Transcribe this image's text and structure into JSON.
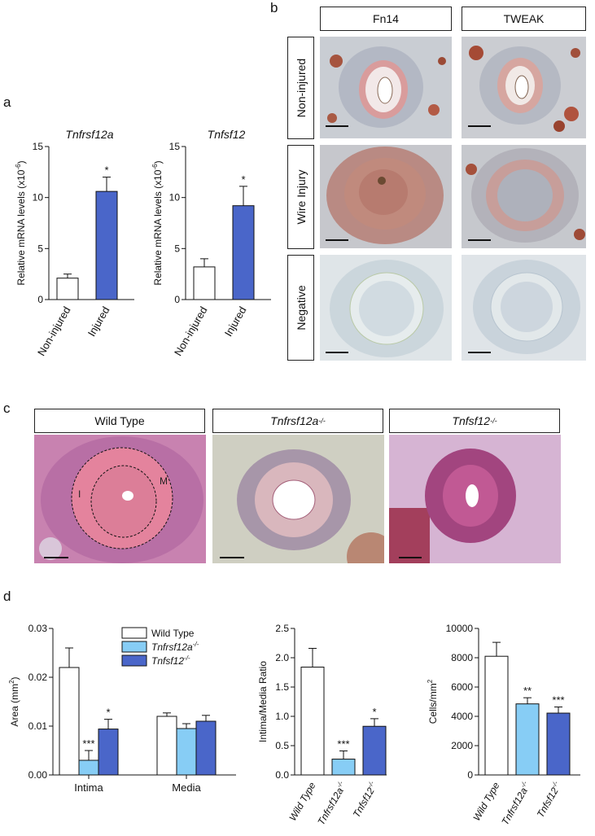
{
  "panels": {
    "a": "a",
    "b": "b",
    "c": "c",
    "d": "d"
  },
  "panel_b": {
    "columns": [
      "Fn14",
      "TWEAK"
    ],
    "rows": [
      "Non-injured",
      "Wire Injury",
      "Negative"
    ]
  },
  "panel_c": {
    "col1": "Wild Type",
    "col2_base": "Tnfrsf12a",
    "col2_sup": "-/-",
    "col3_base": "Tnfsf12",
    "col3_sup": "-/-",
    "marker_intima": "I",
    "marker_media": "M"
  },
  "colors": {
    "white_bar": "#ffffff",
    "light_blue": "#87cdf5",
    "dark_blue": "#4a66c9",
    "outline": "#222222"
  },
  "chart_data": [
    {
      "type": "bar",
      "panel": "a",
      "title": "Tnfrsf12a",
      "categories": [
        "Non-injured",
        "Injured"
      ],
      "values": [
        2.1,
        10.6
      ],
      "errors": [
        0.4,
        1.4
      ],
      "significance": [
        "",
        "*"
      ],
      "ylabel_base": "Relative mRNA levels (x10",
      "ylabel_sup": "-6",
      "ylabel_tail": ")",
      "ylim": [
        0,
        15
      ],
      "yticks": [
        "0",
        "5",
        "10",
        "15"
      ]
    },
    {
      "type": "bar",
      "panel": "a",
      "title": "Tnfsf12",
      "categories": [
        "Non-injured",
        "Injured"
      ],
      "values": [
        3.2,
        9.2
      ],
      "errors": [
        0.8,
        1.9
      ],
      "significance": [
        "",
        "*"
      ],
      "ylabel_base": "Relative mRNA levels (x10",
      "ylabel_sup": "-6",
      "ylabel_tail": ")",
      "ylim": [
        0,
        15
      ],
      "yticks": [
        "0",
        "5",
        "10",
        "15"
      ]
    },
    {
      "type": "bar",
      "panel": "d",
      "categories": [
        "Intima",
        "Media"
      ],
      "series": [
        {
          "name": "Wild Type",
          "sup": "",
          "values": [
            0.022,
            0.012
          ],
          "errors": [
            0.004,
            0.0007
          ],
          "significance": [
            "",
            ""
          ]
        },
        {
          "name": "Tnfrsf12a",
          "sup": "-/-",
          "values": [
            0.003,
            0.0095
          ],
          "errors": [
            0.002,
            0.001
          ],
          "significance": [
            "***",
            ""
          ]
        },
        {
          "name": "Tnfsf12",
          "sup": "-/-",
          "values": [
            0.0094,
            0.011
          ],
          "errors": [
            0.002,
            0.0012
          ],
          "significance": [
            "*",
            ""
          ]
        }
      ],
      "ylabel_base": "Area (mm",
      "ylabel_sup": "2",
      "ylabel_tail": ")",
      "ylim": [
        0,
        0.03
      ],
      "yticks": [
        "0.00",
        "0.01",
        "0.02",
        "0.03"
      ]
    },
    {
      "type": "bar",
      "panel": "d",
      "categories": [
        "Wild Type",
        "Tnfrsf12a",
        "Tnfsf12"
      ],
      "category_sups": [
        "",
        "-/-",
        "-/-"
      ],
      "values": [
        1.84,
        0.27,
        0.83
      ],
      "errors": [
        0.32,
        0.14,
        0.13
      ],
      "significance": [
        "",
        "***",
        "*"
      ],
      "ylabel_base": "Intima/Media Ratio",
      "ylabel_sup": "",
      "ylabel_tail": "",
      "ylim": [
        0,
        2.5
      ],
      "yticks": [
        "0.0",
        "0.5",
        "1.0",
        "1.5",
        "2.0",
        "2.5"
      ]
    },
    {
      "type": "bar",
      "panel": "d",
      "categories": [
        "Wild Type",
        "Tnfrsf12a",
        "Tnfsf12"
      ],
      "category_sups": [
        "",
        "-/-",
        "-/-"
      ],
      "values": [
        8100,
        4850,
        4220
      ],
      "errors": [
        950,
        420,
        420
      ],
      "significance": [
        "",
        "**",
        "***"
      ],
      "ylabel_base": "Cells/mm",
      "ylabel_sup": "2",
      "ylabel_tail": "",
      "ylim": [
        0,
        10000
      ],
      "yticks": [
        "0",
        "2000",
        "4000",
        "6000",
        "8000",
        "10000"
      ]
    }
  ]
}
